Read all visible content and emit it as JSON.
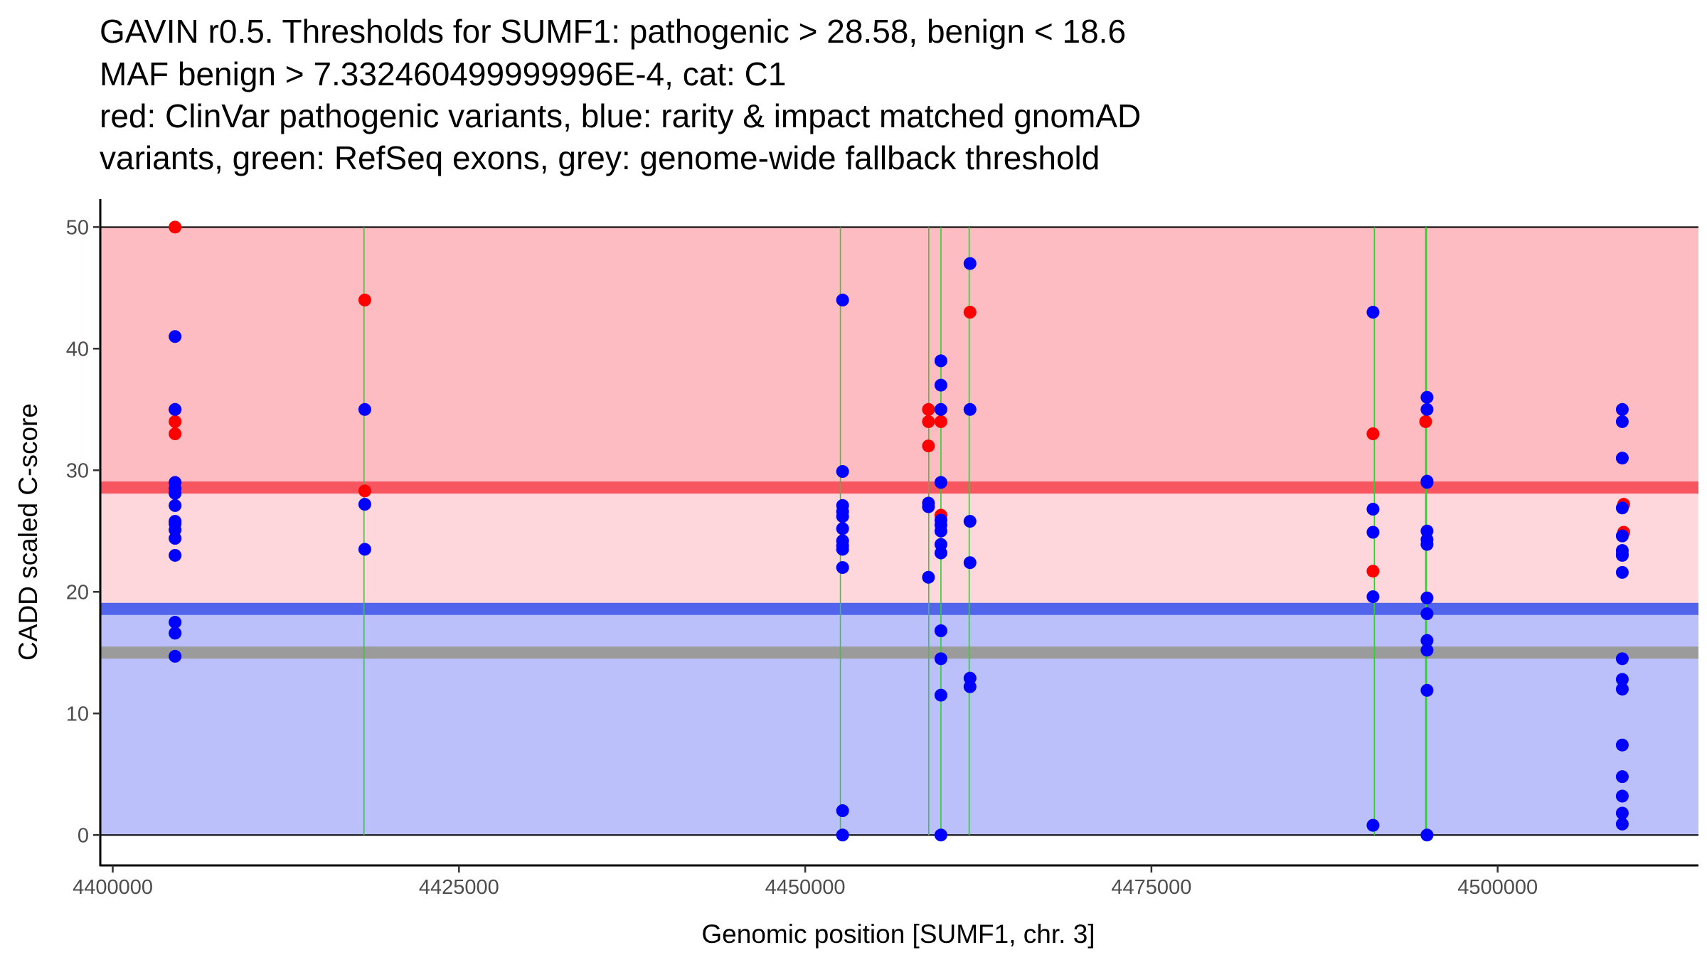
{
  "chart_data": {
    "type": "scatter",
    "title_lines": [
      "GAVIN r0.5. Thresholds for SUMF1: pathogenic > 28.58, benign < 18.6",
      "MAF benign > 7.332460499999996E-4, cat: C1",
      "red: ClinVar pathogenic variants, blue: rarity & impact matched gnomAD",
      "variants, green: RefSeq exons, grey: genome-wide fallback threshold"
    ],
    "xlabel": "Genomic position [SUMF1, chr. 3]",
    "ylabel": "CADD scaled C-score",
    "xlim": [
      4399100,
      4514500
    ],
    "ylim": [
      -2.5,
      52.3
    ],
    "x_ticks": [
      4400000,
      4425000,
      4450000,
      4475000,
      4500000
    ],
    "x_tick_labels": [
      "4400000",
      "4425000",
      "4450000",
      "4475000",
      "4500000"
    ],
    "y_ticks": [
      0,
      10,
      20,
      30,
      40,
      50
    ],
    "y_tick_labels": [
      "0",
      "10",
      "20",
      "30",
      "40",
      "50"
    ],
    "region_x": [
      4399100,
      4514500
    ],
    "thresholds": {
      "pathogenic": 28.58,
      "benign": 18.6,
      "fallback": 15.0,
      "max": 50
    },
    "colors": {
      "pathogenic_zone": "#fdbcc1",
      "uncertain_zone": "#fed7dc",
      "benign_zone": "#bbbffa",
      "pathogenic_line": "#f75560",
      "benign_line": "#5263ec",
      "fallback_line": "#9b9b9b",
      "exon_line": "#33cc33",
      "pathogenic_point": "#ff0000",
      "benign_point": "#0000ff"
    },
    "exons": [
      {
        "start": 4418100,
        "end": 4418160
      },
      {
        "start": 4452500,
        "end": 4452560
      },
      {
        "start": 4458880,
        "end": 4458960
      },
      {
        "start": 4459760,
        "end": 4459840
      },
      {
        "start": 4461800,
        "end": 4461860
      },
      {
        "start": 4491060,
        "end": 4491120
      },
      {
        "start": 4494760,
        "end": 4494900
      }
    ],
    "series": [
      {
        "name": "ClinVar pathogenic variants",
        "color_key": "pathogenic_point",
        "points": [
          [
            4404500,
            50
          ],
          [
            4404500,
            35
          ],
          [
            4404500,
            34
          ],
          [
            4404500,
            33
          ],
          [
            4418200,
            44
          ],
          [
            4418200,
            28.3
          ],
          [
            4458900,
            35
          ],
          [
            4458900,
            34
          ],
          [
            4458900,
            32
          ],
          [
            4459800,
            34
          ],
          [
            4459800,
            26.3
          ],
          [
            4461900,
            43
          ],
          [
            4491000,
            33
          ],
          [
            4491000,
            21.7
          ],
          [
            4494800,
            34
          ],
          [
            4509100,
            27.2
          ],
          [
            4509100,
            24.9
          ]
        ]
      },
      {
        "name": "rarity & impact matched gnomAD variants",
        "color_key": "benign_point",
        "points": [
          [
            4404500,
            41
          ],
          [
            4404500,
            35
          ],
          [
            4404500,
            29
          ],
          [
            4404500,
            28.5
          ],
          [
            4404500,
            28.1
          ],
          [
            4404500,
            27.1
          ],
          [
            4404500,
            25.8
          ],
          [
            4404500,
            25.6
          ],
          [
            4404500,
            25.1
          ],
          [
            4404500,
            24.4
          ],
          [
            4404500,
            23
          ],
          [
            4404500,
            17.5
          ],
          [
            4404500,
            16.6
          ],
          [
            4404500,
            14.7
          ],
          [
            4418200,
            35
          ],
          [
            4418200,
            27.2
          ],
          [
            4418200,
            23.5
          ],
          [
            4452700,
            44
          ],
          [
            4452700,
            29.9
          ],
          [
            4452700,
            27.1
          ],
          [
            4452700,
            26.6
          ],
          [
            4452700,
            26.2
          ],
          [
            4452700,
            25.2
          ],
          [
            4452700,
            24.2
          ],
          [
            4452700,
            23.8
          ],
          [
            4452700,
            23.5
          ],
          [
            4452700,
            22
          ],
          [
            4452700,
            2
          ],
          [
            4452700,
            0
          ],
          [
            4458900,
            27.3
          ],
          [
            4458900,
            27
          ],
          [
            4458900,
            21.2
          ],
          [
            4459800,
            39
          ],
          [
            4459800,
            37
          ],
          [
            4459800,
            35
          ],
          [
            4459800,
            29
          ],
          [
            4459800,
            25.9
          ],
          [
            4459800,
            25.5
          ],
          [
            4459800,
            25
          ],
          [
            4459800,
            23.9
          ],
          [
            4459800,
            23.2
          ],
          [
            4459800,
            16.8
          ],
          [
            4459800,
            14.5
          ],
          [
            4459800,
            11.5
          ],
          [
            4459800,
            0
          ],
          [
            4461900,
            47
          ],
          [
            4461900,
            35
          ],
          [
            4461900,
            25.8
          ],
          [
            4461900,
            22.4
          ],
          [
            4461900,
            12.9
          ],
          [
            4461900,
            12.2
          ],
          [
            4491000,
            43
          ],
          [
            4491000,
            26.8
          ],
          [
            4491000,
            24.9
          ],
          [
            4491000,
            19.6
          ],
          [
            4491000,
            0.8
          ],
          [
            4494900,
            36
          ],
          [
            4494900,
            35
          ],
          [
            4494900,
            29.1
          ],
          [
            4494900,
            29
          ],
          [
            4494900,
            25
          ],
          [
            4494900,
            24.3
          ],
          [
            4494900,
            23.9
          ],
          [
            4494900,
            19.5
          ],
          [
            4494900,
            18.2
          ],
          [
            4494900,
            16
          ],
          [
            4494900,
            15.2
          ],
          [
            4494900,
            11.9
          ],
          [
            4494900,
            0
          ],
          [
            4509000,
            35
          ],
          [
            4509000,
            34
          ],
          [
            4509000,
            31
          ],
          [
            4509000,
            26.9
          ],
          [
            4509000,
            24.6
          ],
          [
            4509000,
            23.4
          ],
          [
            4509000,
            23.1
          ],
          [
            4509000,
            23
          ],
          [
            4509000,
            21.6
          ],
          [
            4509000,
            14.5
          ],
          [
            4509000,
            12.8
          ],
          [
            4509000,
            12
          ],
          [
            4509000,
            7.4
          ],
          [
            4509000,
            4.8
          ],
          [
            4509000,
            3.2
          ],
          [
            4509000,
            1.8
          ],
          [
            4509000,
            0.9
          ]
        ]
      }
    ]
  }
}
